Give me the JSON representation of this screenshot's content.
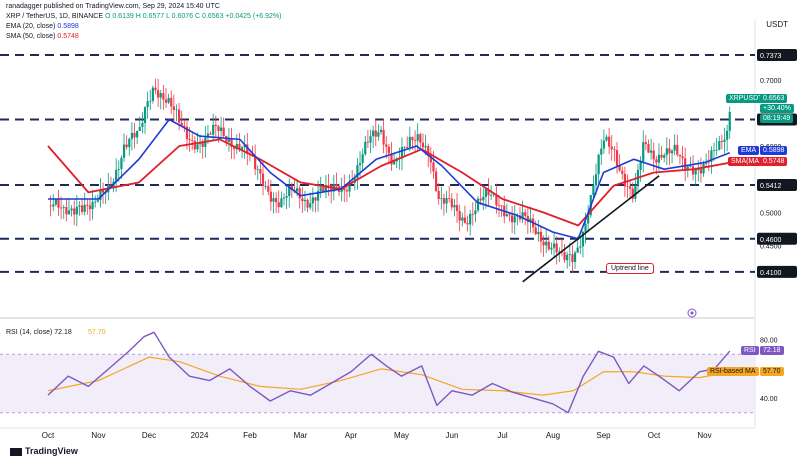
{
  "header": {
    "publisher_line": "ranadagger published on TradingView.com, Sep 29, 2024 15:40 UTC",
    "symbol_line": "XRP / TetherUS, 1D, BINANCE",
    "ohlc": {
      "o": "O 0.6139",
      "h": "H 0.6577",
      "l": "L 0.6076",
      "c": "C 0.6563",
      "chg": "+0.0425 (+6.92%)"
    },
    "ema_label": "EMA (20, close)",
    "ema_value": "0.5898",
    "sma_label": "SMA (50, close)",
    "sma_value": "0.5748"
  },
  "currency": "USDT",
  "brand": "TradingView",
  "annotation": "Uptrend line",
  "colors": {
    "up": "#089981",
    "down": "#f23645",
    "ema": "#1e3ad9",
    "sma": "#e0202b",
    "rsi": "#7e57c2",
    "rsi_ma": "#f5a623",
    "level": "#1e2a5e"
  },
  "labels": {
    "price_tag_symbol": "XRPUSDT",
    "price_tag_value": "0.6563",
    "price_tag_change": "+30.40%",
    "price_tag_timer": "08:19:49",
    "ema_tag": "EMA",
    "ema_tag_value": "0.5898",
    "sma_tag": "SMA(MA",
    "sma_tag_value": "0.5748",
    "rsi_tag": "RSI",
    "rsi_tag_value": "72.18",
    "rsi_ma_tag": "RSI-based MA",
    "rsi_ma_tag_value": "57.70"
  },
  "chart_data": [
    {
      "type": "candlestick",
      "title": "XRP / TetherUS, 1D, BINANCE",
      "ylabel": "USDT",
      "ylim": [
        0.36,
        0.76
      ],
      "x_ticks": [
        "Oct",
        "Nov",
        "Dec",
        "2024",
        "Feb",
        "Mar",
        "Apr",
        "May",
        "Jun",
        "Jul",
        "Aug",
        "Sep",
        "Oct",
        "Nov"
      ],
      "y_ticks": [
        "0.7000",
        "0.6000",
        "0.5000",
        "0.4500"
      ],
      "horizontal_levels": [
        {
          "value": 0.7373,
          "label": "0.7373"
        },
        {
          "value": 0.64,
          "label": "0.6400"
        },
        {
          "value": 0.5412,
          "label": "0.5412"
        },
        {
          "value": 0.46,
          "label": "0.4600"
        },
        {
          "value": 0.41,
          "label": "0.4100"
        }
      ],
      "trendline": {
        "from": {
          "month": 9.4,
          "price": 0.395
        },
        "to": {
          "month": 12.1,
          "price": 0.555
        }
      },
      "close_path": [
        [
          0.0,
          0.51
        ],
        [
          0.3,
          0.495
        ],
        [
          0.6,
          0.52
        ],
        [
          0.9,
          0.5
        ],
        [
          1.2,
          0.54
        ],
        [
          1.5,
          0.6
        ],
        [
          1.8,
          0.61
        ],
        [
          1.95,
          0.665
        ],
        [
          2.1,
          0.7
        ],
        [
          2.35,
          0.665
        ],
        [
          2.6,
          0.63
        ],
        [
          2.85,
          0.615
        ],
        [
          3.1,
          0.605
        ],
        [
          3.35,
          0.62
        ],
        [
          3.6,
          0.615
        ],
        [
          3.85,
          0.6
        ],
        [
          4.1,
          0.56
        ],
        [
          4.35,
          0.54
        ],
        [
          4.6,
          0.515
        ],
        [
          4.85,
          0.525
        ],
        [
          5.1,
          0.52
        ],
        [
          5.35,
          0.535
        ],
        [
          5.6,
          0.525
        ],
        [
          5.85,
          0.54
        ],
        [
          6.1,
          0.565
        ],
        [
          6.35,
          0.6
        ],
        [
          6.6,
          0.625
        ],
        [
          6.85,
          0.58
        ],
        [
          7.1,
          0.59
        ],
        [
          7.35,
          0.615
        ],
        [
          7.55,
          0.6
        ],
        [
          7.75,
          0.51
        ],
        [
          8.0,
          0.505
        ],
        [
          8.25,
          0.495
        ],
        [
          8.5,
          0.51
        ],
        [
          8.75,
          0.52
        ],
        [
          9.0,
          0.515
        ],
        [
          9.25,
          0.49
        ],
        [
          9.5,
          0.48
        ],
        [
          9.75,
          0.47
        ],
        [
          10.0,
          0.45
        ],
        [
          10.2,
          0.42
        ],
        [
          10.4,
          0.43
        ],
        [
          10.6,
          0.48
        ],
        [
          10.8,
          0.54
        ],
        [
          11.0,
          0.6
        ],
        [
          11.2,
          0.595
        ],
        [
          11.4,
          0.56
        ],
        [
          11.6,
          0.52
        ],
        [
          11.8,
          0.595
        ],
        [
          12.0,
          0.585
        ],
        [
          12.2,
          0.6
        ],
        [
          12.4,
          0.59
        ],
        [
          12.6,
          0.56
        ],
        [
          12.8,
          0.57
        ],
        [
          13.0,
          0.58
        ],
        [
          13.15,
          0.585
        ],
        [
          13.3,
          0.59
        ],
        [
          13.45,
          0.6139
        ],
        [
          13.5,
          0.6563
        ]
      ],
      "ema_path": [
        [
          0.0,
          0.52
        ],
        [
          1.0,
          0.52
        ],
        [
          1.8,
          0.58
        ],
        [
          2.4,
          0.64
        ],
        [
          3.0,
          0.615
        ],
        [
          3.8,
          0.61
        ],
        [
          4.4,
          0.56
        ],
        [
          5.0,
          0.525
        ],
        [
          5.8,
          0.535
        ],
        [
          6.5,
          0.58
        ],
        [
          7.3,
          0.6
        ],
        [
          7.8,
          0.57
        ],
        [
          8.5,
          0.515
        ],
        [
          9.3,
          0.495
        ],
        [
          10.0,
          0.47
        ],
        [
          10.5,
          0.46
        ],
        [
          11.0,
          0.56
        ],
        [
          11.6,
          0.58
        ],
        [
          12.2,
          0.565
        ],
        [
          13.0,
          0.575
        ],
        [
          13.5,
          0.5898
        ]
      ],
      "sma_path": [
        [
          0.0,
          0.6
        ],
        [
          0.8,
          0.53
        ],
        [
          1.8,
          0.545
        ],
        [
          2.6,
          0.6
        ],
        [
          3.4,
          0.61
        ],
        [
          4.2,
          0.58
        ],
        [
          5.0,
          0.545
        ],
        [
          5.8,
          0.535
        ],
        [
          6.6,
          0.57
        ],
        [
          7.4,
          0.595
        ],
        [
          8.2,
          0.56
        ],
        [
          9.0,
          0.52
        ],
        [
          9.8,
          0.5
        ],
        [
          10.5,
          0.48
        ],
        [
          11.2,
          0.54
        ],
        [
          12.0,
          0.56
        ],
        [
          12.8,
          0.565
        ],
        [
          13.5,
          0.5748
        ]
      ]
    },
    {
      "type": "line",
      "title": "RSI (14, close)",
      "ylim": [
        25,
        90
      ],
      "y_ticks": [
        "80.00",
        "40.00"
      ],
      "band": [
        30,
        70
      ],
      "rsi_label": "RSI (14, close) 72.18",
      "rsi_ma_label": "57.70",
      "series": [
        {
          "name": "RSI",
          "values": [
            [
              0.0,
              42
            ],
            [
              0.4,
              55
            ],
            [
              0.8,
              48
            ],
            [
              1.2,
              60
            ],
            [
              1.6,
              72
            ],
            [
              1.9,
              82
            ],
            [
              2.1,
              85
            ],
            [
              2.4,
              68
            ],
            [
              2.8,
              55
            ],
            [
              3.2,
              52
            ],
            [
              3.6,
              60
            ],
            [
              4.0,
              48
            ],
            [
              4.4,
              38
            ],
            [
              4.8,
              45
            ],
            [
              5.2,
              42
            ],
            [
              5.6,
              50
            ],
            [
              6.0,
              58
            ],
            [
              6.4,
              70
            ],
            [
              6.7,
              62
            ],
            [
              7.0,
              55
            ],
            [
              7.4,
              62
            ],
            [
              7.7,
              35
            ],
            [
              8.0,
              45
            ],
            [
              8.4,
              42
            ],
            [
              8.8,
              50
            ],
            [
              9.2,
              44
            ],
            [
              9.6,
              40
            ],
            [
              10.0,
              36
            ],
            [
              10.3,
              30
            ],
            [
              10.6,
              55
            ],
            [
              10.9,
              72
            ],
            [
              11.2,
              68
            ],
            [
              11.5,
              50
            ],
            [
              11.8,
              62
            ],
            [
              12.1,
              55
            ],
            [
              12.5,
              45
            ],
            [
              12.9,
              58
            ],
            [
              13.2,
              60
            ],
            [
              13.5,
              72.18
            ]
          ]
        },
        {
          "name": "RSI-based MA",
          "values": [
            [
              0.0,
              45
            ],
            [
              1.0,
              52
            ],
            [
              2.0,
              68
            ],
            [
              2.6,
              65
            ],
            [
              3.4,
              55
            ],
            [
              4.2,
              48
            ],
            [
              5.0,
              46
            ],
            [
              5.8,
              52
            ],
            [
              6.6,
              60
            ],
            [
              7.4,
              56
            ],
            [
              8.2,
              46
            ],
            [
              9.0,
              45
            ],
            [
              9.8,
              42
            ],
            [
              10.4,
              45
            ],
            [
              11.0,
              58
            ],
            [
              11.6,
              58
            ],
            [
              12.2,
              55
            ],
            [
              12.9,
              54
            ],
            [
              13.5,
              57.7
            ]
          ]
        }
      ]
    }
  ]
}
